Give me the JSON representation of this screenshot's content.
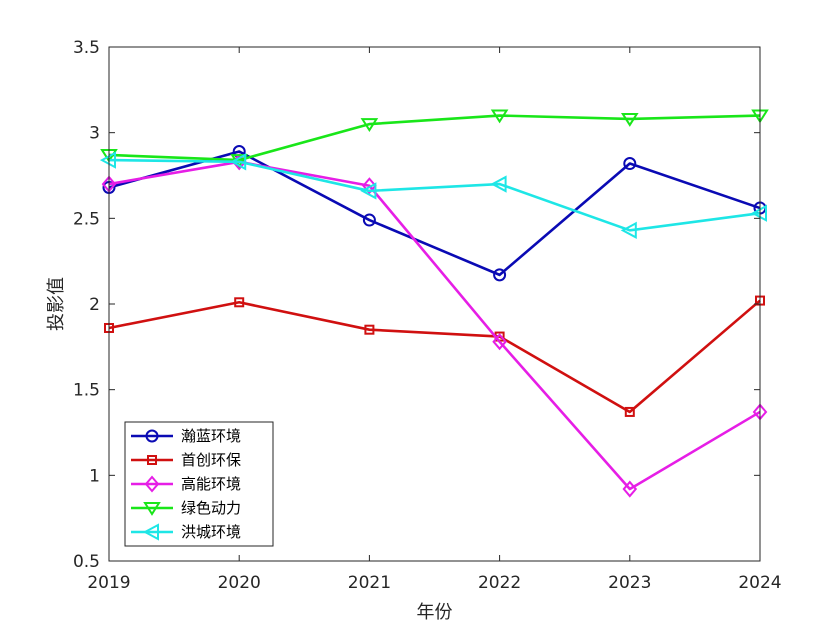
{
  "chart_data": {
    "type": "line",
    "title": "",
    "xlabel": "年份",
    "ylabel": "投影值",
    "x": [
      2019,
      2020,
      2021,
      2022,
      2023,
      2024
    ],
    "xticks": [
      "2019",
      "2020",
      "2021",
      "2022",
      "2023",
      "2024"
    ],
    "yticks": [
      "0.5",
      "1",
      "1.5",
      "2",
      "2.5",
      "3",
      "3.5"
    ],
    "ylim": [
      0.5,
      3.5
    ],
    "grid": false,
    "legend_position": "bottom-left",
    "series": [
      {
        "name": "瀚蓝环境",
        "color": "#0a0ab4",
        "marker": "circle",
        "values": [
          2.68,
          2.89,
          2.49,
          2.17,
          2.82,
          2.56
        ]
      },
      {
        "name": "首创环保",
        "color": "#d01010",
        "marker": "square",
        "values": [
          1.86,
          2.01,
          1.85,
          1.81,
          1.37,
          2.02
        ]
      },
      {
        "name": "高能环境",
        "color": "#e61ee6",
        "marker": "diamond",
        "values": [
          2.7,
          2.83,
          2.69,
          1.78,
          0.92,
          1.37
        ]
      },
      {
        "name": "绿色动力",
        "color": "#19e619",
        "marker": "triangle-down",
        "values": [
          2.87,
          2.84,
          3.05,
          3.1,
          3.08,
          3.1
        ]
      },
      {
        "name": "洪城环境",
        "color": "#1ee6e6",
        "marker": "triangle-left",
        "values": [
          2.84,
          2.83,
          2.66,
          2.7,
          2.43,
          2.53
        ]
      }
    ]
  }
}
